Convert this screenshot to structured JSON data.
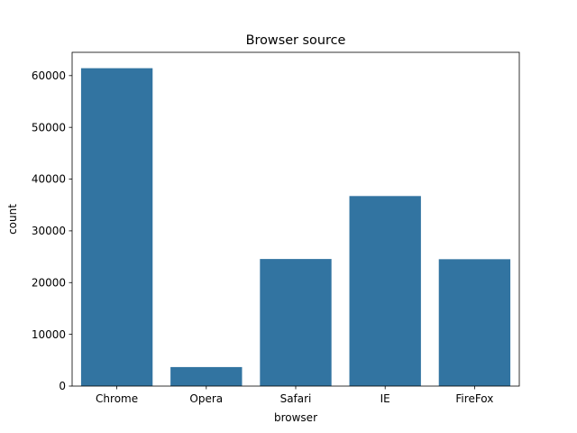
{
  "chart_data": {
    "type": "bar",
    "title": "Browser source",
    "xlabel": "browser",
    "ylabel": "count",
    "categories": [
      "Chrome",
      "Opera",
      "Safari",
      "IE",
      "FireFox"
    ],
    "values": [
      61432,
      3676,
      24562,
      36727,
      24520
    ],
    "ylim": [
      0,
      64500
    ],
    "yticks": [
      0,
      10000,
      20000,
      30000,
      40000,
      50000,
      60000
    ],
    "grid": false,
    "color": "#3274a1"
  }
}
